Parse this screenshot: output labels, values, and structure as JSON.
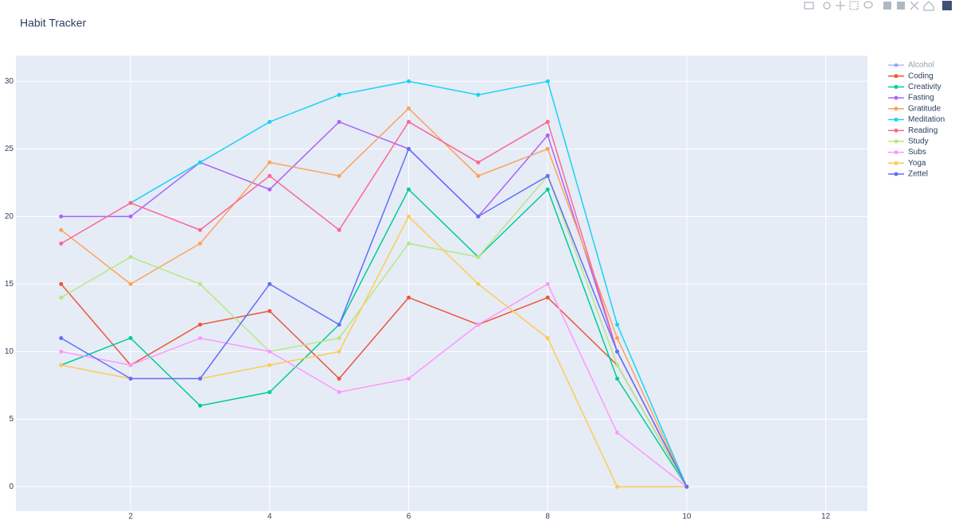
{
  "chart_data": {
    "type": "line",
    "title": "Habit Tracker",
    "x": [
      1,
      2,
      3,
      4,
      5,
      6,
      7,
      8,
      9,
      10
    ],
    "series": [
      {
        "name": "Alcohol",
        "color": "#636EFA",
        "visible": false,
        "values": [
          null,
          null,
          null,
          null,
          null,
          null,
          null,
          null,
          null,
          null
        ]
      },
      {
        "name": "Coding",
        "color": "#EF553B",
        "values": [
          15,
          9,
          12,
          13,
          8,
          14,
          12,
          14,
          9,
          0
        ]
      },
      {
        "name": "Creativity",
        "color": "#00CC96",
        "values": [
          9,
          11,
          6,
          7,
          12,
          22,
          17,
          22,
          8,
          0
        ]
      },
      {
        "name": "Fasting",
        "color": "#AB63FA",
        "values": [
          20,
          20,
          24,
          22,
          27,
          25,
          20,
          26,
          10,
          0
        ]
      },
      {
        "name": "Gratitude",
        "color": "#FFA15A",
        "values": [
          19,
          15,
          18,
          24,
          23,
          28,
          23,
          25,
          11,
          0
        ]
      },
      {
        "name": "Meditation",
        "color": "#19D3F3",
        "values": [
          null,
          21,
          24,
          27,
          29,
          30,
          29,
          30,
          12,
          0
        ]
      },
      {
        "name": "Reading",
        "color": "#FF6692",
        "values": [
          18,
          21,
          19,
          23,
          19,
          27,
          24,
          27,
          10,
          0
        ]
      },
      {
        "name": "Study",
        "color": "#B6E880",
        "values": [
          14,
          17,
          15,
          10,
          11,
          18,
          17,
          23,
          9,
          0
        ]
      },
      {
        "name": "Subs",
        "color": "#FF97FF",
        "values": [
          10,
          9,
          11,
          10,
          7,
          8,
          12,
          15,
          4,
          0
        ]
      },
      {
        "name": "Yoga",
        "color": "#FECB52",
        "values": [
          9,
          8,
          8,
          9,
          10,
          20,
          15,
          11,
          0,
          0
        ]
      },
      {
        "name": "Zettel",
        "color": "#636EFA",
        "values": [
          11,
          8,
          8,
          15,
          12,
          25,
          20,
          23,
          10,
          0
        ]
      }
    ],
    "xlim": [
      0.35,
      12.6
    ],
    "xticks": [
      2,
      4,
      6,
      8,
      10,
      12
    ],
    "ylim": [
      -1.8,
      31.9
    ],
    "yticks": [
      0,
      5,
      10,
      15,
      20,
      25,
      30
    ],
    "grid": true,
    "legend": "right"
  }
}
